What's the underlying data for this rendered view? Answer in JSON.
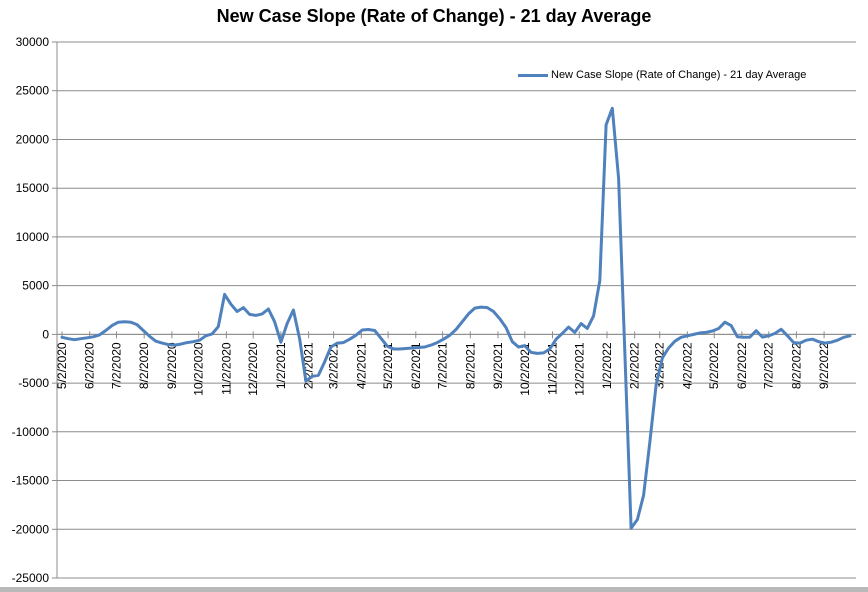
{
  "chart_data": {
    "type": "line",
    "title": "New Case Slope (Rate of Change) - 21 day Average",
    "xlabel": "",
    "ylabel": "",
    "ylim": [
      -25000,
      30000
    ],
    "y_tick_step": 5000,
    "grid": true,
    "legend_position": "top-right",
    "gridline_color": "#8C8C8C",
    "text_color": "#000000",
    "x_start_date": "2020-05-02",
    "x_interval_days": 7,
    "x_tick_labels": [
      "5/2/2020",
      "6/2/2020",
      "7/2/2020",
      "8/2/2020",
      "9/2/2020",
      "10/2/2020",
      "11/2/2020",
      "12/2/2020",
      "1/2/2021",
      "2/2/2021",
      "3/2/2021",
      "4/2/2021",
      "5/2/2021",
      "6/2/2021",
      "7/2/2021",
      "8/2/2021",
      "9/2/2021",
      "10/2/2021",
      "11/2/2021",
      "12/2/2021",
      "1/2/2022",
      "2/2/2022",
      "3/2/2022",
      "4/2/2022",
      "5/2/2022",
      "6/2/2022",
      "7/2/2022",
      "8/2/2022",
      "9/2/2022"
    ],
    "series": [
      {
        "name": "New Case Slope (Rate of Change) - 21 day Average",
        "color": "#4F81BD",
        "values": [
          -300,
          -450,
          -550,
          -450,
          -350,
          -250,
          -50,
          400,
          900,
          1250,
          1300,
          1250,
          1000,
          400,
          -200,
          -700,
          -900,
          -1050,
          -1100,
          -1000,
          -850,
          -750,
          -600,
          -150,
          50,
          800,
          4100,
          3100,
          2350,
          2750,
          2050,
          1950,
          2100,
          2600,
          1300,
          -800,
          1100,
          2500,
          -500,
          -4800,
          -4300,
          -4200,
          -2800,
          -1300,
          -900,
          -850,
          -500,
          -100,
          450,
          500,
          400,
          -400,
          -1200,
          -1500,
          -1500,
          -1450,
          -1400,
          -1350,
          -1300,
          -1100,
          -850,
          -500,
          -100,
          500,
          1300,
          2100,
          2700,
          2800,
          2750,
          2350,
          1600,
          700,
          -750,
          -1300,
          -1150,
          -1850,
          -1950,
          -1900,
          -1500,
          -500,
          100,
          750,
          200,
          1100,
          600,
          1900,
          5500,
          21500,
          23200,
          16000,
          -2000,
          -19900,
          -19000,
          -16500,
          -11000,
          -5200,
          -2400,
          -1400,
          -700,
          -300,
          -150,
          0,
          150,
          200,
          350,
          600,
          1250,
          900,
          -250,
          -300,
          -280,
          380,
          -280,
          -150,
          100,
          520,
          -150,
          -850,
          -900,
          -600,
          -500,
          -750,
          -900,
          -800,
          -600,
          -300,
          -150
        ]
      }
    ]
  },
  "legend": {
    "label": "New Case Slope (Rate of Change) - 21 day Average"
  }
}
